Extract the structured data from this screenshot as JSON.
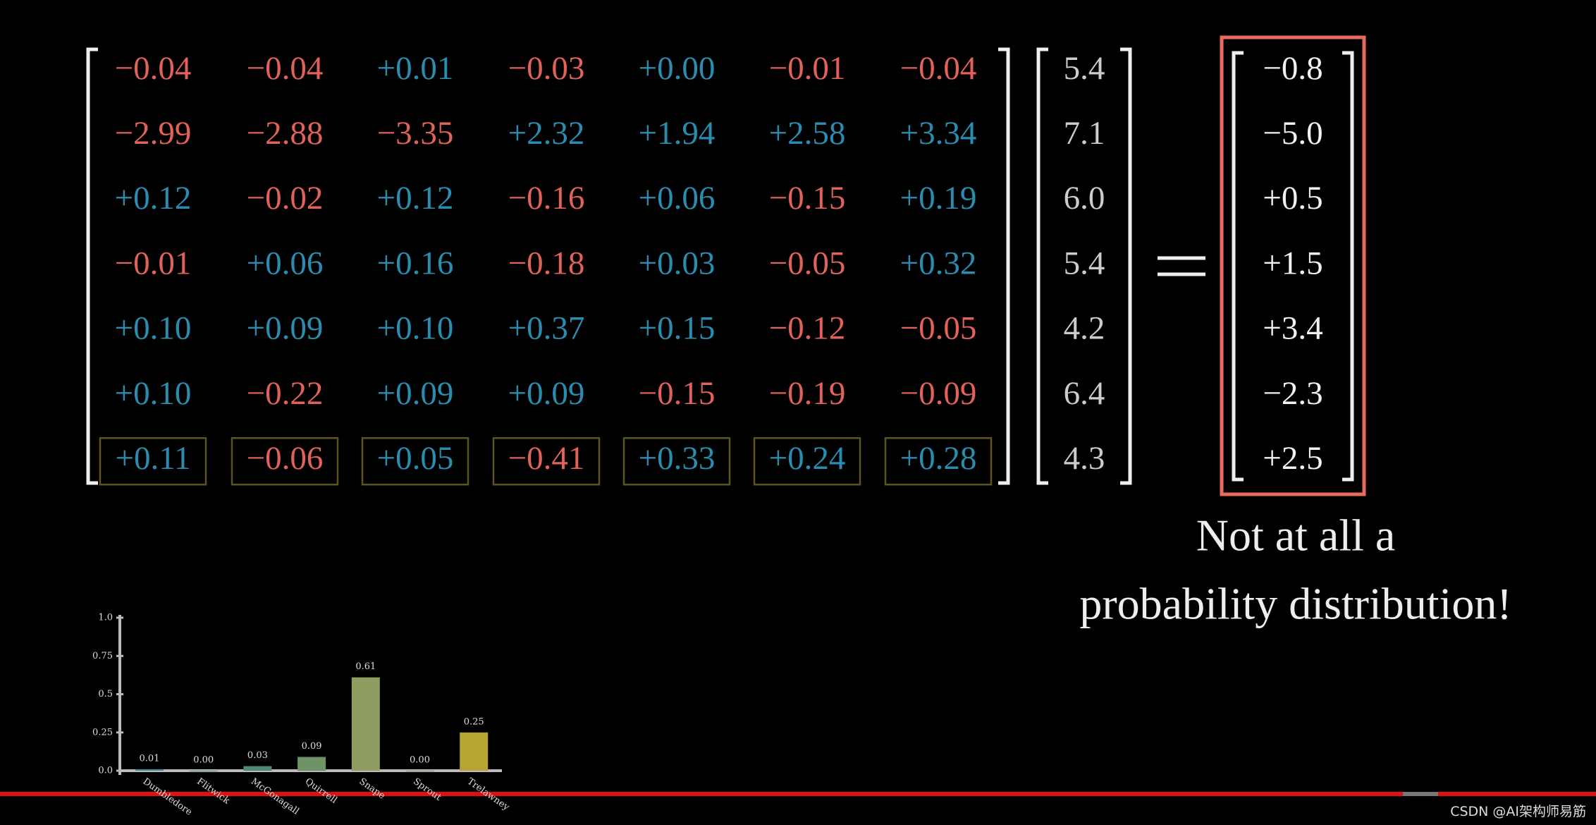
{
  "matrix": {
    "rows": [
      [
        "−0.04",
        "−0.04",
        "+0.01",
        "−0.03",
        "+0.00",
        "−0.01",
        "−0.04"
      ],
      [
        "−2.99",
        "−2.88",
        "−3.35",
        "+2.32",
        "+1.94",
        "+2.58",
        "+3.34"
      ],
      [
        "+0.12",
        "−0.02",
        "+0.12",
        "−0.16",
        "+0.06",
        "−0.15",
        "+0.19"
      ],
      [
        "−0.01",
        "+0.06",
        "+0.16",
        "−0.18",
        "+0.03",
        "−0.05",
        "+0.32"
      ],
      [
        "+0.10",
        "+0.09",
        "+0.10",
        "+0.37",
        "+0.15",
        "−0.12",
        "−0.05"
      ],
      [
        "+0.10",
        "−0.22",
        "+0.09",
        "+0.09",
        "−0.15",
        "−0.19",
        "−0.09"
      ],
      [
        "+0.11",
        "−0.06",
        "+0.05",
        "−0.41",
        "+0.33",
        "+0.24",
        "+0.28"
      ]
    ]
  },
  "vector": [
    "5.4",
    "7.1",
    "6.0",
    "5.4",
    "4.2",
    "6.4",
    "4.3"
  ],
  "result": [
    "−0.8",
    "−5.0",
    "+0.5",
    "+1.5",
    "+3.4",
    "−2.3",
    "+2.5"
  ],
  "caption": [
    "Not at all a",
    "probability distribution!"
  ],
  "chart_data": {
    "type": "bar",
    "categories": [
      "Dumbledore",
      "Flitwick",
      "McGonagall",
      "Quirrell",
      "Snape",
      "Sprout",
      "Trelawney"
    ],
    "values": [
      0.01,
      0.0,
      0.03,
      0.09,
      0.61,
      0.0,
      0.25
    ],
    "value_labels": [
      "0.01",
      "0.00",
      "0.03",
      "0.09",
      "0.61",
      "0.00",
      "0.25"
    ],
    "colors": [
      "#3f8fa0",
      "#4a8a8a",
      "#4f8a70",
      "#6f9266",
      "#8f9c62",
      "#7a9060",
      "#b8a432"
    ],
    "ylim": [
      0,
      1
    ],
    "yticks": [
      {
        "value": 0,
        "label": "0.0"
      },
      0.25,
      0.5,
      0.75,
      {
        "value": 1,
        "label": "1.0"
      }
    ]
  },
  "watermark": "CSDN @AI架构师易筋"
}
